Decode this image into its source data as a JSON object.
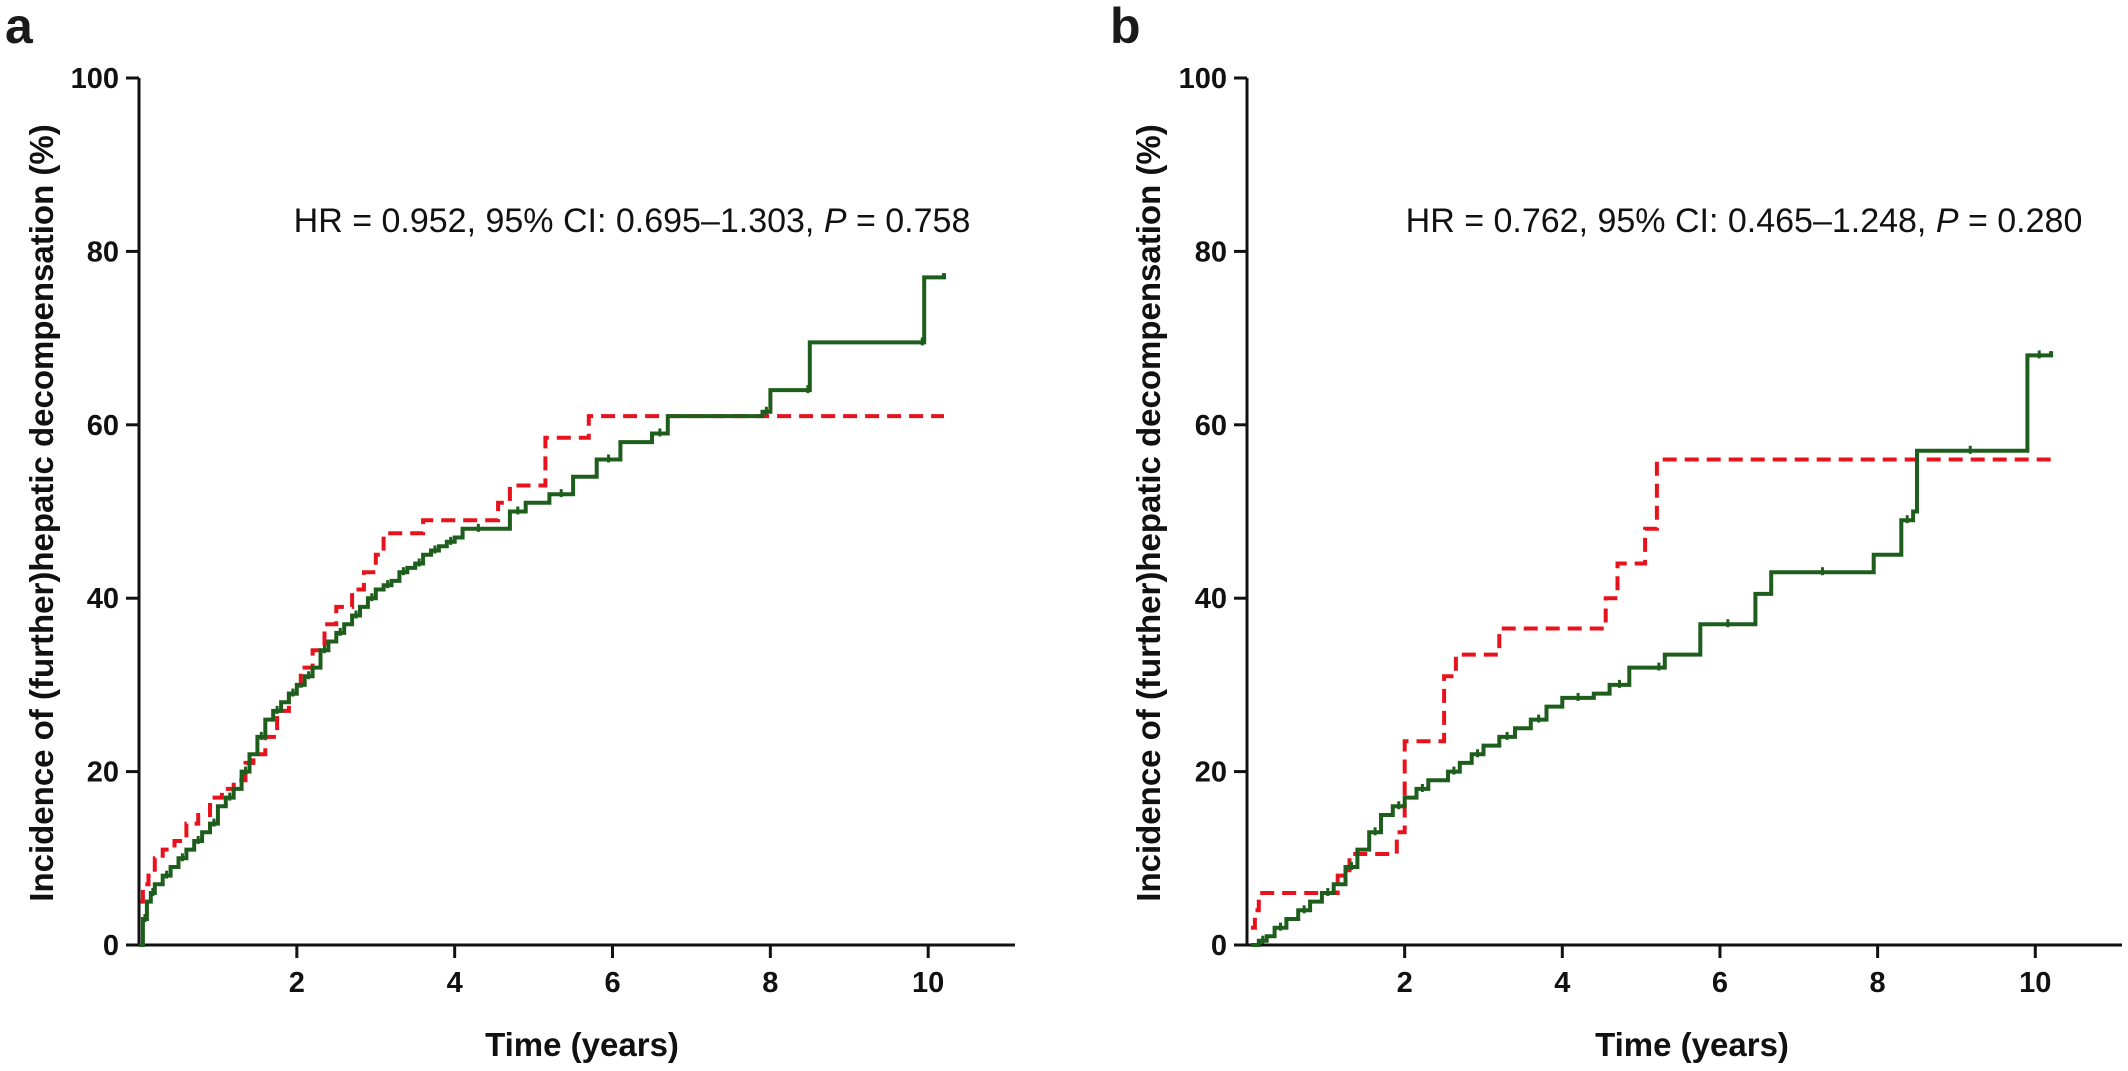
{
  "colors": {
    "series_a": "#e8121c",
    "series_b": "#1e5e1c",
    "axis": "#111111"
  },
  "chart_data": [
    {
      "type": "line",
      "panel_label": "a",
      "annotation": {
        "prefix": "HR = 0.952, 95% CI: 0.695–1.303, ",
        "p_symbol": "P",
        "suffix": " = 0.758"
      },
      "xlabel": "Time (years)",
      "ylabel": "Incidence of (further)hepatic decompensation (%)",
      "xlim": [
        0,
        11.1
      ],
      "ylim": [
        0,
        100
      ],
      "xticks": [
        2,
        4,
        6,
        8,
        10
      ],
      "xtick_labels": [
        "2",
        "4",
        "6",
        "8",
        "10"
      ],
      "yticks": [
        0,
        20,
        40,
        60,
        80,
        100
      ],
      "ytick_labels": [
        "0",
        "20",
        "40",
        "60",
        "80",
        "100"
      ],
      "grid": false,
      "series": [
        {
          "style": "dashed",
          "color": "#e8121c",
          "x": [
            0.02,
            0.05,
            0.12,
            0.2,
            0.3,
            0.45,
            0.6,
            0.75,
            0.9,
            1.05,
            1.2,
            1.35,
            1.45,
            1.6,
            1.75,
            1.9,
            2.05,
            2.2,
            2.35,
            2.5,
            2.7,
            2.85,
            3.0,
            3.1,
            3.5,
            3.6,
            4.15,
            4.55,
            4.7,
            4.9,
            5.15,
            5.6,
            5.7,
            10.2
          ],
          "y": [
            5,
            7,
            8,
            10,
            11,
            12,
            14,
            15,
            17,
            18,
            19,
            21,
            22,
            24,
            27,
            29,
            32,
            34,
            37,
            39,
            41,
            43,
            45,
            47.5,
            47.5,
            49,
            49,
            51,
            53,
            53,
            58.5,
            58.5,
            61,
            61
          ]
        },
        {
          "style": "solid",
          "color": "#1e5e1c",
          "x": [
            0,
            0.05,
            0.1,
            0.15,
            0.2,
            0.3,
            0.4,
            0.5,
            0.6,
            0.7,
            0.8,
            0.9,
            1.0,
            1.1,
            1.2,
            1.3,
            1.4,
            1.5,
            1.6,
            1.7,
            1.8,
            1.9,
            2.0,
            2.1,
            2.2,
            2.3,
            2.4,
            2.5,
            2.6,
            2.7,
            2.8,
            2.9,
            3.0,
            3.1,
            3.2,
            3.3,
            3.4,
            3.5,
            3.6,
            3.7,
            3.8,
            3.9,
            4.0,
            4.1,
            4.5,
            4.7,
            4.9,
            5.2,
            5.5,
            5.8,
            6.1,
            6.5,
            6.7,
            7.9,
            8.0,
            8.45,
            8.5,
            9.9,
            9.95,
            10.2
          ],
          "y": [
            0,
            3,
            5,
            6,
            7,
            8,
            9,
            10,
            11,
            12,
            13,
            14,
            16,
            17,
            18,
            20,
            22,
            24,
            26,
            27,
            28,
            29,
            30,
            31,
            32,
            34,
            35,
            36,
            37,
            38,
            39,
            40,
            41,
            41.5,
            42,
            43,
            43.5,
            44,
            45,
            45.5,
            46,
            46.5,
            47,
            48,
            48,
            50,
            51,
            52,
            54,
            56,
            58,
            59,
            61,
            61.5,
            64,
            64,
            69.5,
            69.5,
            77,
            77.5
          ]
        }
      ]
    },
    {
      "type": "line",
      "panel_label": "b",
      "annotation": {
        "prefix": "HR = 0.762, 95% CI: 0.465–1.248, ",
        "p_symbol": "P",
        "suffix": " = 0.280"
      },
      "xlabel": "Time (years)",
      "ylabel": "Incidence of (further)hepatic decompensation (%)",
      "xlim": [
        0,
        11.1
      ],
      "ylim": [
        0,
        100
      ],
      "xticks": [
        2,
        4,
        6,
        8,
        10
      ],
      "xtick_labels": [
        "2",
        "4",
        "6",
        "8",
        "10"
      ],
      "yticks": [
        0,
        20,
        40,
        60,
        80,
        100
      ],
      "ytick_labels": [
        "0",
        "20",
        "40",
        "60",
        "80",
        "100"
      ],
      "grid": false,
      "series": [
        {
          "style": "dashed",
          "color": "#e8121c",
          "x": [
            0.05,
            0.1,
            0.15,
            0.9,
            1.15,
            1.3,
            1.75,
            1.9,
            2.0,
            2.35,
            2.5,
            2.65,
            3.2,
            4.5,
            4.55,
            4.7,
            4.95,
            5.05,
            5.2,
            10.2
          ],
          "y": [
            2,
            4,
            6,
            6,
            8,
            10.5,
            10.5,
            13,
            23.5,
            23.5,
            31,
            33.5,
            36.5,
            36.5,
            40,
            44,
            44,
            48,
            56,
            56
          ]
        },
        {
          "style": "solid",
          "color": "#1e5e1c",
          "x": [
            0.05,
            0.15,
            0.25,
            0.35,
            0.5,
            0.65,
            0.8,
            0.95,
            1.1,
            1.25,
            1.4,
            1.55,
            1.7,
            1.85,
            2.0,
            2.15,
            2.3,
            2.55,
            2.7,
            2.85,
            3.0,
            3.2,
            3.4,
            3.6,
            3.8,
            4.0,
            4.4,
            4.6,
            4.85,
            5.15,
            5.3,
            5.75,
            6.45,
            6.65,
            7.95,
            8.3,
            8.45,
            8.5,
            9.85,
            9.9,
            10.2
          ],
          "y": [
            0,
            0.5,
            1,
            2,
            3,
            4,
            5,
            6,
            7,
            9,
            11,
            13,
            15,
            16,
            17,
            18,
            19,
            20,
            21,
            22,
            23,
            24,
            25,
            26,
            27.5,
            28.5,
            29,
            30,
            32,
            32,
            33.5,
            37,
            40.5,
            43,
            45,
            49,
            50,
            57,
            57,
            68,
            68.5
          ]
        }
      ]
    }
  ]
}
